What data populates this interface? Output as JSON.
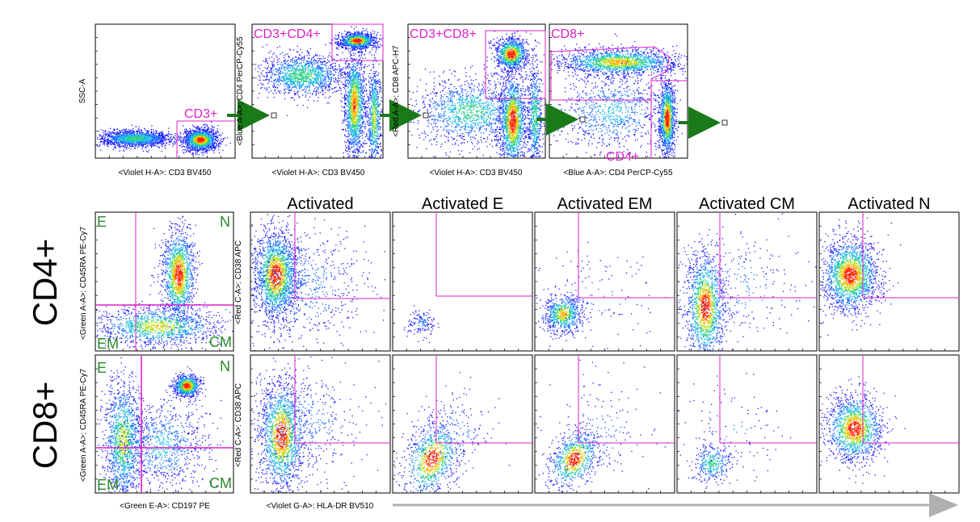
{
  "chart_data": {
    "type": "scatter",
    "gating_panels": [
      {
        "id": "g1",
        "ylabel": "SSC-A",
        "xlabel": "<Violet H-A>: CD3 BV450",
        "gate": "CD3+"
      },
      {
        "id": "g2",
        "ylabel": "<Blue A-A>: CD4 PerCP-Cy55",
        "xlabel": "<Violet H-A>: CD3 BV450",
        "gate": "CD3+CD4+"
      },
      {
        "id": "g3",
        "ylabel": "<Red A-A>: CD8 APC-H7",
        "xlabel": "<Violet H-A>: CD3 BV450",
        "gate": "CD3+CD8+"
      },
      {
        "id": "g4",
        "ylabel": "",
        "xlabel": "<Blue A-A>: CD4 PerCP-Cy55",
        "gate": "CD8+",
        "gate2": "CD4+"
      }
    ],
    "rows": [
      {
        "label": "CD4+"
      },
      {
        "label": "CD8+"
      }
    ],
    "phenotype_panel": {
      "ylabel": "<Green A-A>: CD45RA PE-Cy7",
      "xlabel": "<Green E-A>: CD197 PE",
      "quadrants": {
        "tl": "E",
        "tr": "N",
        "bl": "EM",
        "br": "CM"
      }
    },
    "activation_columns": [
      "Activated",
      "Activated E",
      "Activated EM",
      "Activated CM",
      "Activated N"
    ],
    "activation_ylabel": "<Red C-A>: CD38 APC",
    "activation_xlabel": "<Violet G-A>: HLA-DR BV510"
  },
  "colors": {
    "gate": "#e020c8",
    "arrow": "#1a7a1a",
    "quadlabel": "#2a8a2a",
    "timeline": "#b0b0b0"
  }
}
